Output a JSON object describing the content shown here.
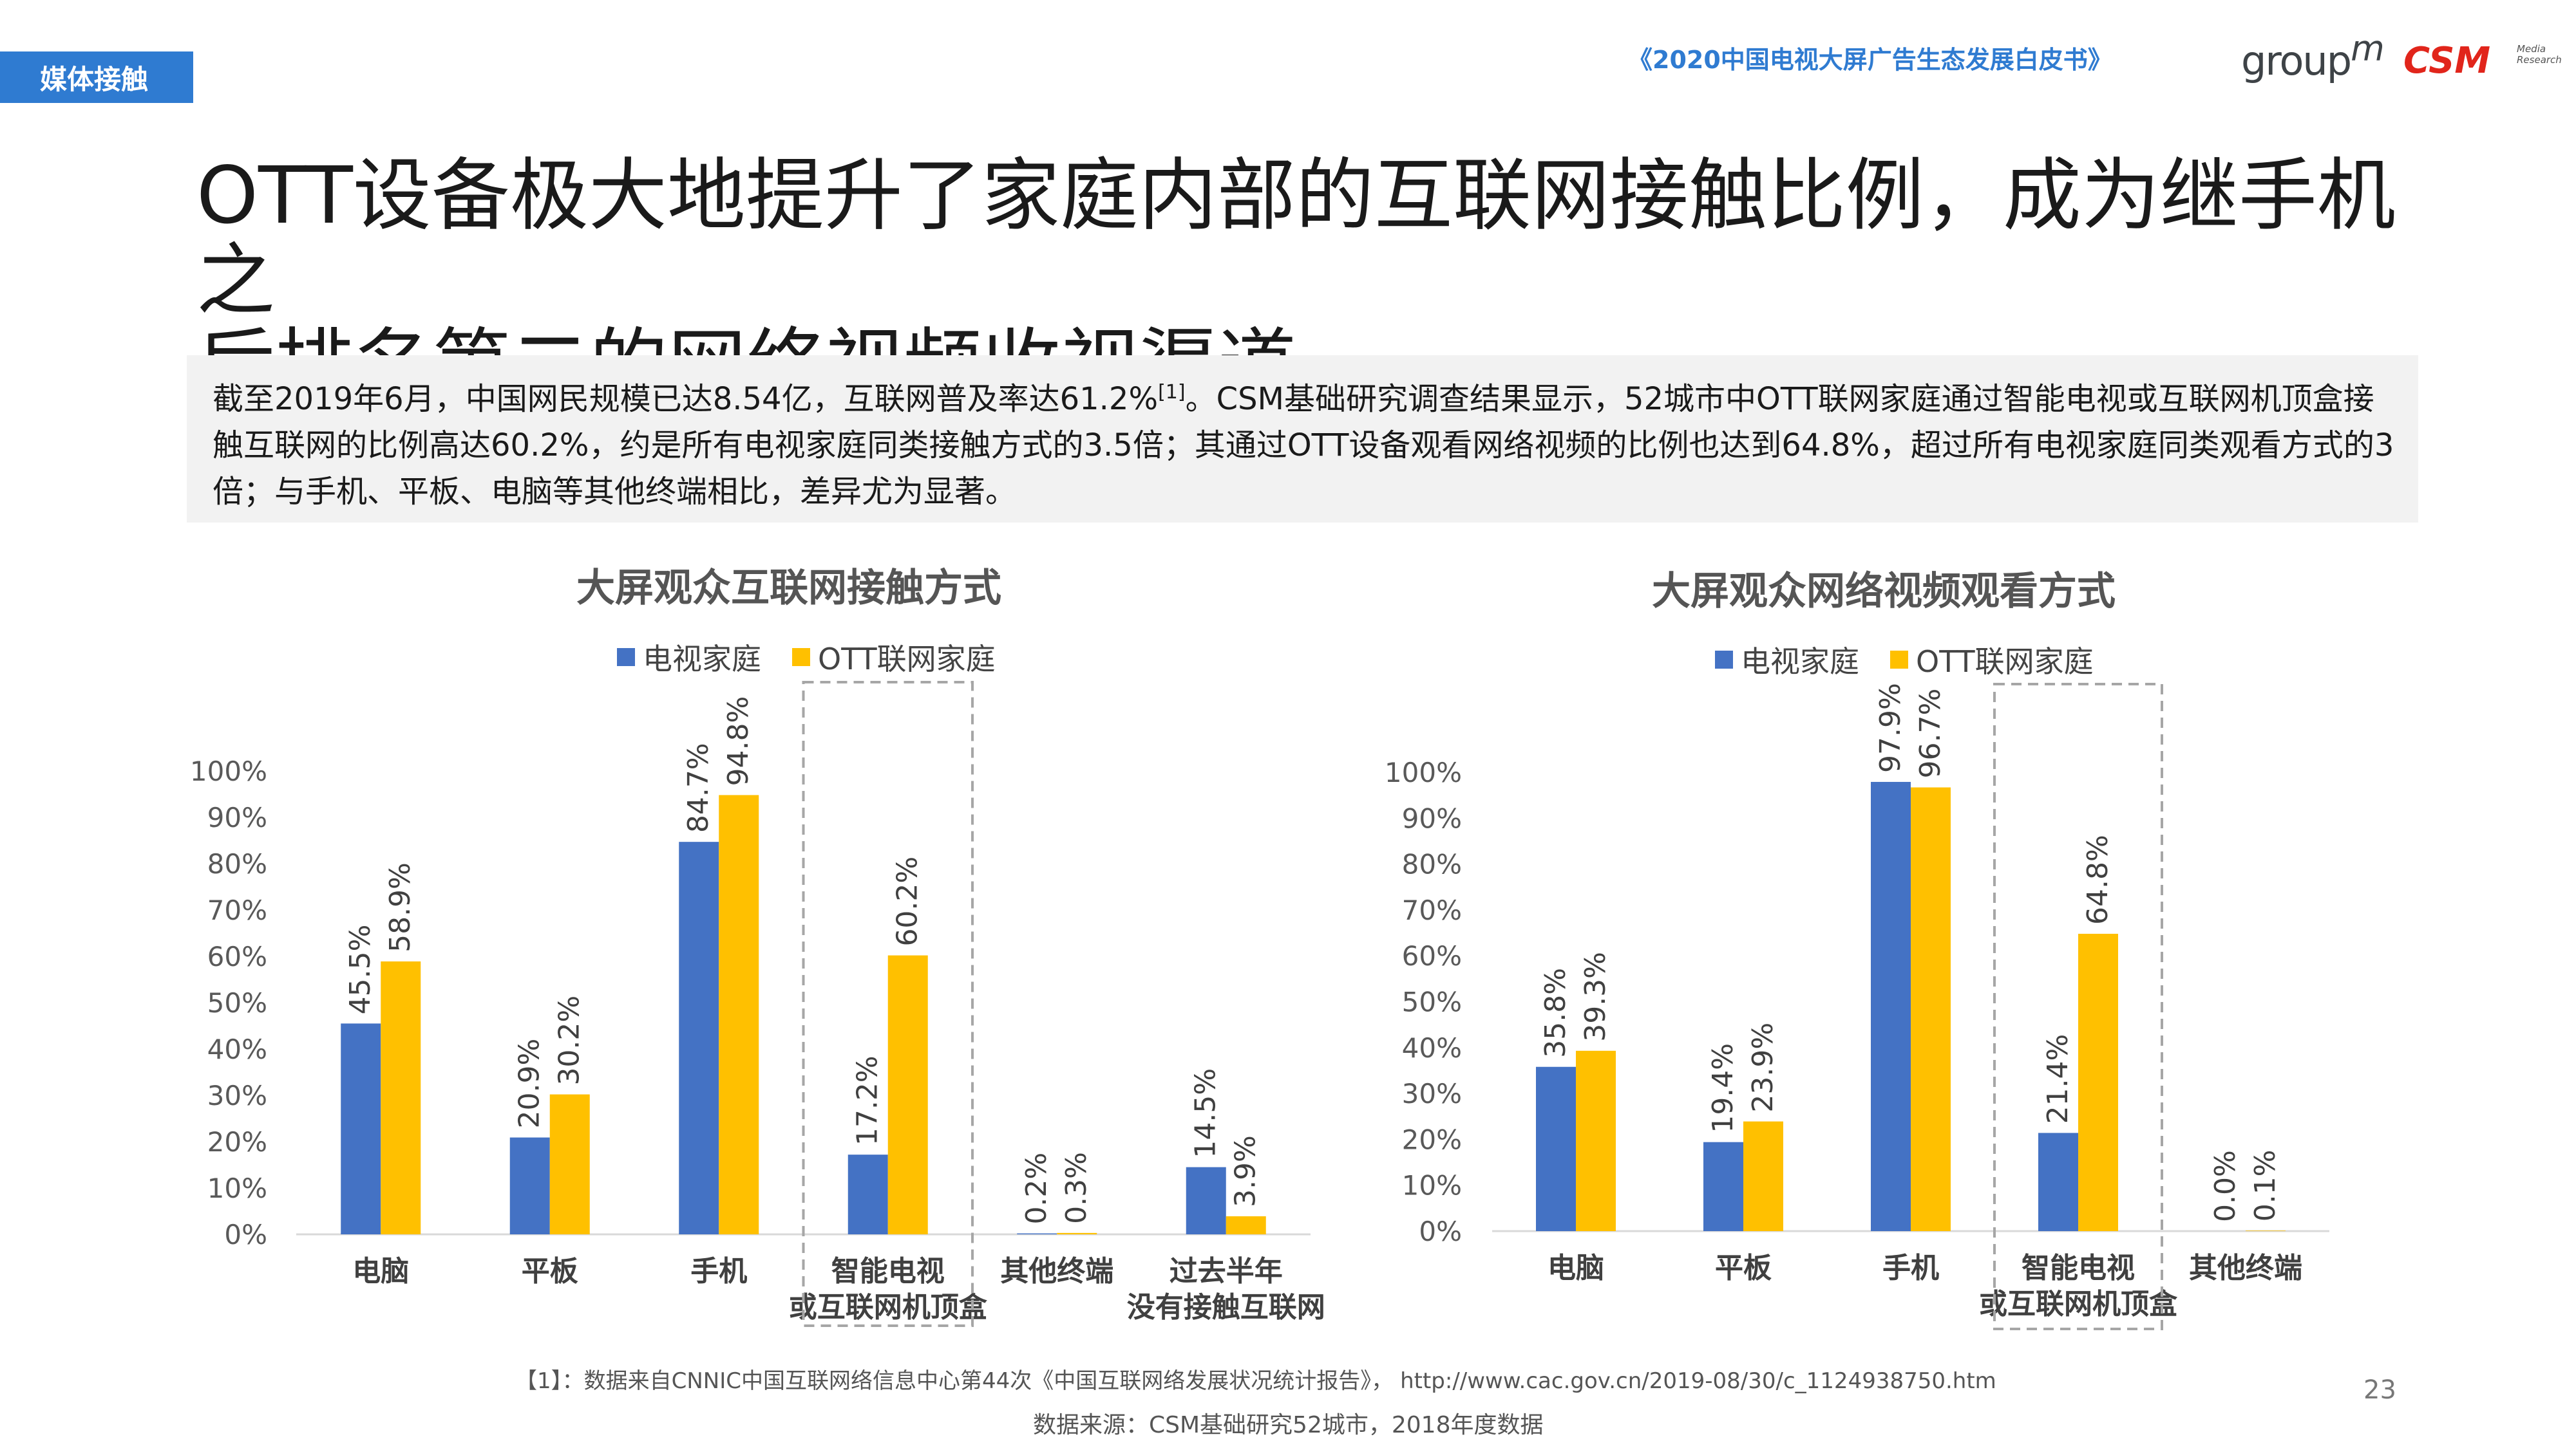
{
  "header": {
    "section_tag": "媒体接触",
    "whitepaper_title": "《2020中国电视大屏广告生态发展白皮书》",
    "logo_groupm": "group",
    "logo_groupm_mark": "m",
    "logo_csm": "CSM",
    "logo_csm_sub": "Media Research"
  },
  "title_line1": "OTT设备极大地提升了家庭内部的互联网接触比例，成为继手机之",
  "title_line2": "后排名第二的网络视频收视渠道",
  "summary": {
    "part1": "截至2019年6月，中国网民规模已达8.54亿，互联网普及率达61.2%",
    "ref": "[1]",
    "part2": "。CSM基础研究调查结果显示，52城市中OTT联网家庭通过智能电视或互联网机顶盒接触互联网的比例高达60.2%，约是所有电视家庭同类接触方式的3.5倍；其通过OTT设备观看网络视频的比例也达到64.8%，超过所有电视家庭同类观看方式的3倍；与手机、平板、电脑等其他终端相比，差异尤为显著。"
  },
  "colors": {
    "tv": "#4472C4",
    "ott": "#FFC000",
    "accent": "#2F7BD1"
  },
  "chart_data": [
    {
      "type": "bar",
      "title": "大屏观众互联网接触方式",
      "categories": [
        "电脑",
        "平板",
        "手机",
        "智能电视\n或互联网机顶盒",
        "其他终端",
        "过去半年\n没有接触互联网"
      ],
      "series": [
        {
          "name": "电视家庭",
          "values": [
            45.5,
            20.9,
            84.7,
            17.2,
            0.2,
            14.5
          ]
        },
        {
          "name": "OTT联网家庭",
          "values": [
            58.9,
            30.2,
            94.8,
            60.2,
            0.3,
            3.9
          ]
        }
      ],
      "ylim": [
        0,
        100
      ],
      "yticks": [
        "0%",
        "10%",
        "20%",
        "30%",
        "40%",
        "50%",
        "60%",
        "70%",
        "80%",
        "90%",
        "100%"
      ],
      "legend_position": "top",
      "highlighted_category": "智能电视\n或互联网机顶盒"
    },
    {
      "type": "bar",
      "title": "大屏观众网络视频观看方式",
      "categories": [
        "电脑",
        "平板",
        "手机",
        "智能电视\n或互联网机顶盒",
        "其他终端"
      ],
      "series": [
        {
          "name": "电视家庭",
          "values": [
            35.8,
            19.4,
            97.9,
            21.4,
            0.0
          ]
        },
        {
          "name": "OTT联网家庭",
          "values": [
            39.3,
            23.9,
            96.7,
            64.8,
            0.1
          ]
        }
      ],
      "ylim": [
        0,
        100
      ],
      "yticks": [
        "0%",
        "10%",
        "20%",
        "30%",
        "40%",
        "50%",
        "60%",
        "70%",
        "80%",
        "90%",
        "100%"
      ],
      "legend_position": "top",
      "highlighted_category": "智能电视\n或互联网机顶盒"
    }
  ],
  "footnote": "【1】：数据来自CNNIC中国互联网络信息中心第44次《中国互联网络发展状况统计报告》，  http://www.cac.gov.cn/2019-08/30/c_1124938750.htm",
  "source": "数据来源：CSM基础研究52城市，2018年度数据",
  "page_number": "23"
}
